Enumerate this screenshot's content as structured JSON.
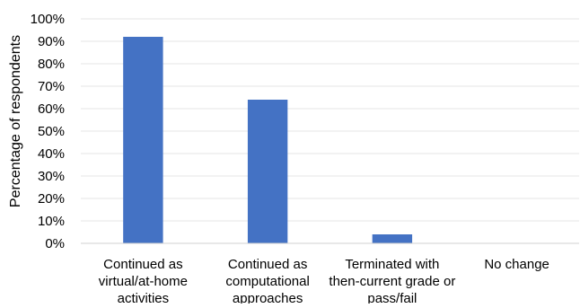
{
  "chart_data": {
    "type": "bar",
    "title": "",
    "xlabel": "",
    "ylabel": "Percentage of respondents",
    "categories": [
      [
        "Continued as",
        "virtual/at-home",
        "activities"
      ],
      [
        "Continued as",
        "computational",
        "approaches"
      ],
      [
        "Terminated with",
        "then-current grade or",
        "pass/fail"
      ],
      [
        "No change"
      ]
    ],
    "values": [
      92,
      64,
      4,
      0
    ],
    "ylim": [
      0,
      100
    ],
    "yticks": [
      "0%",
      "10%",
      "20%",
      "30%",
      "40%",
      "50%",
      "60%",
      "70%",
      "80%",
      "90%",
      "100%"
    ],
    "grid": true,
    "legend": "none",
    "colors": {
      "bar": "#4472c4",
      "grid": "#e6e6e6",
      "axis": "#d0d0d0"
    }
  }
}
